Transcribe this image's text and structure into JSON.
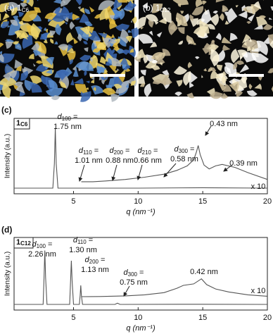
{
  "images": [
    {
      "label": "(a) 1",
      "sub": "C6"
    },
    {
      "label": "(b) 1",
      "sub": "C12"
    }
  ],
  "chart_data": [
    {
      "type": "line",
      "panel": "(c)",
      "sample": "1",
      "sample_sub": "C6",
      "xlabel": "q (nm⁻¹)",
      "ylabel": "Intensity (a.u.)",
      "xlim": [
        0.4,
        20
      ],
      "xticks": [
        5,
        10,
        15,
        20
      ],
      "ylim": [
        0,
        100
      ],
      "series": [
        {
          "color": "#555555",
          "x": [
            0.4,
            3.4,
            3.52,
            3.59,
            3.66,
            3.8,
            5,
            10,
            15,
            20
          ],
          "values": [
            7.5,
            7.5,
            40,
            87,
            40,
            7.5,
            7.5,
            7.5,
            8,
            7.5
          ]
        },
        {
          "name": "x 10",
          "color": "#555555",
          "x": [
            5.6,
            6.5,
            7.5,
            9,
            10.5,
            12,
            13,
            13.8,
            14.3,
            14.5,
            14.65,
            14.8,
            15.1,
            15.5,
            16,
            16.5,
            17.5,
            18.5,
            20
          ],
          "values": [
            16,
            16,
            17,
            19,
            22,
            26,
            31,
            37,
            45,
            55,
            64,
            52,
            38,
            33,
            37,
            39,
            35,
            28,
            19
          ]
        }
      ],
      "annotations": [
        {
          "symbol": "d",
          "sub": "100",
          "eq": "=",
          "value": "1.75 nm"
        },
        {
          "symbol": "d",
          "sub": "110",
          "eq": "=",
          "value": "1.01 nm"
        },
        {
          "symbol": "d",
          "sub": "200",
          "eq": "=",
          "value": "0.88 nm"
        },
        {
          "symbol": "d",
          "sub": "210",
          "eq": "=",
          "value": "0.66 nm"
        },
        {
          "symbol": "d",
          "sub": "300",
          "eq": "=",
          "value": "0.58 nm"
        },
        {
          "value": "0.43 nm"
        },
        {
          "value": "0.39 nm"
        }
      ]
    },
    {
      "type": "line",
      "panel": "(d)",
      "sample": "1",
      "sample_sub": "C12",
      "xlabel": "q (nm⁻¹)",
      "ylabel": "Intensity (a.u.)",
      "xlim": [
        0.4,
        20
      ],
      "xticks": [
        5,
        10,
        15,
        20
      ],
      "ylim": [
        0,
        100
      ],
      "series": [
        {
          "color": "#555555",
          "x": [
            0.4,
            2.65,
            2.72,
            2.78,
            2.84,
            2.95,
            4.7,
            4.77,
            4.83,
            4.89,
            5.0,
            5.45,
            5.51,
            5.56,
            5.61,
            5.7,
            8.2,
            8.4,
            8.6,
            15,
            20
          ],
          "values": [
            7.8,
            7.8,
            45,
            82,
            45,
            7.8,
            7.8,
            40,
            68,
            40,
            7.8,
            7.8,
            20,
            34,
            20,
            7.8,
            7.8,
            9.5,
            7.8,
            8,
            7.8
          ]
        },
        {
          "name": "x 10",
          "color": "#555555",
          "x": [
            5.6,
            7,
            9,
            10.5,
            12,
            13,
            13.5,
            14.3,
            14.9,
            15.3,
            16,
            17,
            18.5,
            20
          ],
          "values": [
            18.4,
            18.6,
            19.5,
            21,
            24,
            30,
            34,
            36,
            43,
            35,
            29,
            25,
            21,
            19
          ]
        }
      ],
      "annotations": [
        {
          "symbol": "d",
          "sub": "100",
          "eq": "=",
          "value": "2.26 nm"
        },
        {
          "symbol": "d",
          "sub": "110",
          "eq": "=",
          "value": "1.30 nm"
        },
        {
          "symbol": "d",
          "sub": "200",
          "eq": "=",
          "value": "1.13 nm"
        },
        {
          "symbol": "d",
          "sub": "300",
          "eq": "=",
          "value": "0.75 nm"
        },
        {
          "value": "0.42 nm"
        }
      ]
    }
  ]
}
